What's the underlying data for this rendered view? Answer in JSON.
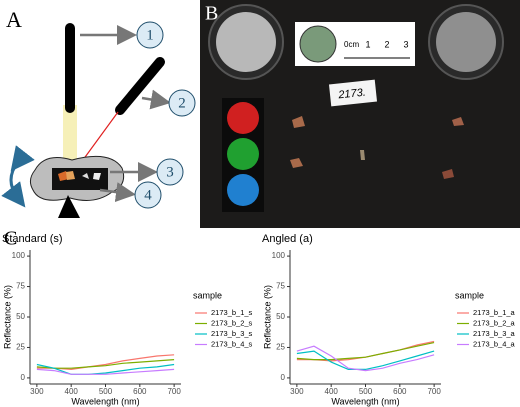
{
  "panels": {
    "a": {
      "label": "A",
      "steps": [
        "1",
        "2",
        "3",
        "4"
      ]
    },
    "b": {
      "label": "B",
      "sample_tag": "2173.",
      "ruler": [
        "0cm",
        "1",
        "2",
        "3"
      ]
    },
    "c": {
      "label": "C"
    }
  },
  "chart_data": [
    {
      "type": "line",
      "title": "Standard (s)",
      "x_label": "Wavelength (nm)",
      "y_label": "Reflectance (%)",
      "legend_title": "sample",
      "x": [
        300,
        350,
        400,
        450,
        500,
        550,
        600,
        650,
        700
      ],
      "xlim": [
        280,
        720
      ],
      "xticks": [
        300,
        400,
        500,
        600,
        700
      ],
      "ylim": [
        -5,
        105
      ],
      "yticks": [
        0,
        25,
        50,
        75,
        100
      ],
      "series": [
        {
          "name": "2173_b_1_s",
          "color": "#F8766D",
          "values": [
            8,
            8,
            7,
            9,
            11,
            14,
            16,
            18,
            19
          ]
        },
        {
          "name": "2173_b_2_s",
          "color": "#7CAE00",
          "values": [
            9,
            8,
            8,
            9,
            10,
            12,
            13,
            14,
            15
          ]
        },
        {
          "name": "2173_b_3_s",
          "color": "#00BFC4",
          "values": [
            11,
            8,
            3,
            3,
            4,
            6,
            8,
            9,
            11
          ]
        },
        {
          "name": "2173_b_4_s",
          "color": "#C77CFF",
          "values": [
            7,
            6,
            3,
            3,
            3,
            4,
            5,
            6,
            7
          ]
        }
      ]
    },
    {
      "type": "line",
      "title": "Angled (a)",
      "x_label": "Wavelength (nm)",
      "y_label": "Reflectance (%)",
      "legend_title": "sample",
      "x": [
        300,
        350,
        400,
        450,
        500,
        550,
        600,
        650,
        700
      ],
      "xlim": [
        280,
        720
      ],
      "xticks": [
        300,
        400,
        500,
        600,
        700
      ],
      "ylim": [
        -5,
        105
      ],
      "yticks": [
        0,
        25,
        50,
        75,
        100
      ],
      "series": [
        {
          "name": "2173_b_1_a",
          "color": "#F8766D",
          "values": [
            15,
            15,
            14,
            15,
            17,
            20,
            23,
            27,
            30
          ]
        },
        {
          "name": "2173_b_2_a",
          "color": "#7CAE00",
          "values": [
            16,
            15,
            15,
            16,
            17,
            20,
            23,
            26,
            29
          ]
        },
        {
          "name": "2173_b_3_a",
          "color": "#00BFC4",
          "values": [
            20,
            22,
            13,
            7,
            7,
            10,
            14,
            18,
            22
          ]
        },
        {
          "name": "2173_b_4_a",
          "color": "#C77CFF",
          "values": [
            22,
            26,
            18,
            8,
            6,
            8,
            12,
            15,
            19
          ]
        }
      ]
    }
  ]
}
